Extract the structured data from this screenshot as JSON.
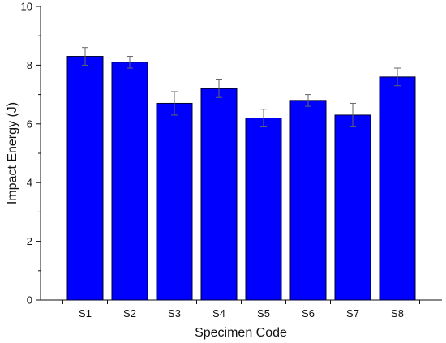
{
  "chart_data": {
    "type": "bar",
    "title": "",
    "xlabel": "Specimen Code",
    "ylabel": "Impact Energy (J)",
    "categories": [
      "S1",
      "S2",
      "S3",
      "S4",
      "S5",
      "S6",
      "S7",
      "S8"
    ],
    "values": [
      8.3,
      8.1,
      6.7,
      7.2,
      6.2,
      6.8,
      6.3,
      7.6
    ],
    "errors": [
      0.3,
      0.2,
      0.4,
      0.3,
      0.3,
      0.2,
      0.4,
      0.3
    ],
    "ylim": [
      0,
      10
    ],
    "yticks": [
      "0",
      "2",
      "4",
      "6",
      "8",
      "10"
    ],
    "grid": false,
    "bar_color": "#0000ff",
    "error_bar_color": "#666666"
  }
}
